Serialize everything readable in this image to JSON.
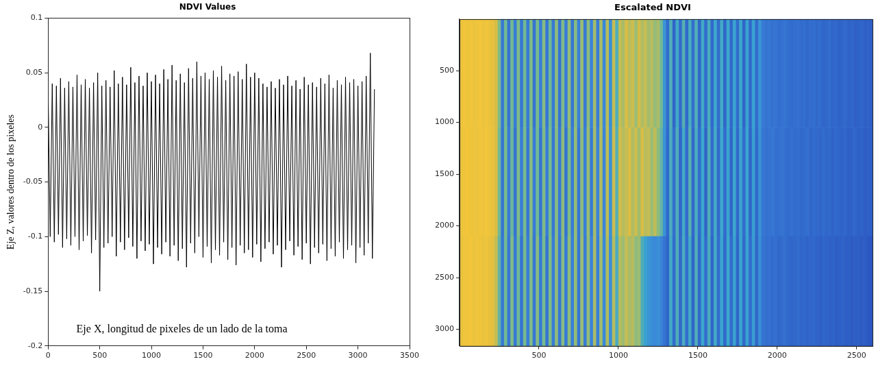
{
  "chart_data": [
    {
      "type": "line",
      "title": "NDVI Values",
      "y_label": "Eje Z, valores dentro de los pixeles",
      "annotations": [
        "Eje X, longitud de pixeles de un lado de la toma"
      ],
      "color": "#000000",
      "marker": "none",
      "line_style": "solid",
      "grid": false,
      "xlim": [
        0,
        3500
      ],
      "xticks": [
        0,
        500,
        1000,
        1500,
        2000,
        2500,
        3000,
        3500
      ],
      "ylim": [
        -0.2,
        0.1
      ],
      "yticks": [
        -0.2,
        -0.15,
        -0.1,
        -0.05,
        0,
        0.05,
        0.1
      ],
      "x": [
        0,
        20,
        40,
        60,
        80,
        100,
        120,
        140,
        160,
        180,
        200,
        220,
        240,
        260,
        280,
        300,
        320,
        340,
        360,
        380,
        400,
        420,
        440,
        460,
        480,
        500,
        520,
        540,
        560,
        580,
        600,
        620,
        640,
        660,
        680,
        700,
        720,
        740,
        760,
        780,
        800,
        820,
        840,
        860,
        880,
        900,
        920,
        940,
        960,
        980,
        1000,
        1020,
        1040,
        1060,
        1080,
        1100,
        1120,
        1140,
        1160,
        1180,
        1200,
        1220,
        1240,
        1260,
        1280,
        1300,
        1320,
        1340,
        1360,
        1380,
        1400,
        1420,
        1440,
        1460,
        1480,
        1500,
        1520,
        1540,
        1560,
        1580,
        1600,
        1620,
        1640,
        1660,
        1680,
        1700,
        1720,
        1740,
        1760,
        1780,
        1800,
        1820,
        1840,
        1860,
        1880,
        1900,
        1920,
        1940,
        1960,
        1980,
        2000,
        2020,
        2040,
        2060,
        2080,
        2100,
        2120,
        2140,
        2160,
        2180,
        2200,
        2220,
        2240,
        2260,
        2280,
        2300,
        2320,
        2340,
        2360,
        2380,
        2400,
        2420,
        2440,
        2460,
        2480,
        2500,
        2520,
        2540,
        2560,
        2580,
        2600,
        2620,
        2640,
        2660,
        2680,
        2700,
        2720,
        2740,
        2760,
        2780,
        2800,
        2820,
        2840,
        2860,
        2880,
        2900,
        2920,
        2940,
        2960,
        2980,
        3000,
        3020,
        3040,
        3060,
        3080,
        3100,
        3120,
        3140,
        3160
      ],
      "values": [
        0.035,
        -0.1,
        0.04,
        -0.105,
        0.038,
        -0.098,
        0.045,
        -0.11,
        0.036,
        -0.102,
        0.042,
        -0.108,
        0.037,
        -0.1,
        0.048,
        -0.112,
        0.039,
        -0.104,
        0.044,
        -0.099,
        0.036,
        -0.115,
        0.041,
        -0.103,
        0.05,
        -0.15,
        0.038,
        -0.11,
        0.043,
        -0.106,
        0.037,
        -0.1,
        0.052,
        -0.118,
        0.04,
        -0.105,
        0.046,
        -0.112,
        0.039,
        -0.101,
        0.055,
        -0.109,
        0.041,
        -0.12,
        0.047,
        -0.104,
        0.038,
        -0.113,
        0.05,
        -0.107,
        0.042,
        -0.125,
        0.048,
        -0.11,
        0.04,
        -0.116,
        0.053,
        -0.105,
        0.044,
        -0.118,
        0.057,
        -0.108,
        0.043,
        -0.122,
        0.049,
        -0.111,
        0.041,
        -0.128,
        0.054,
        -0.106,
        0.045,
        -0.115,
        0.06,
        -0.1,
        0.047,
        -0.119,
        0.05,
        -0.109,
        0.044,
        -0.124,
        0.052,
        -0.112,
        0.046,
        -0.117,
        0.056,
        -0.105,
        0.043,
        -0.121,
        0.049,
        -0.11,
        0.047,
        -0.126,
        0.051,
        -0.108,
        0.044,
        -0.115,
        0.058,
        -0.112,
        0.046,
        -0.119,
        0.05,
        -0.107,
        0.045,
        -0.123,
        0.04,
        -0.111,
        0.037,
        -0.105,
        0.042,
        -0.116,
        0.036,
        -0.108,
        0.044,
        -0.128,
        0.039,
        -0.112,
        0.047,
        -0.104,
        0.038,
        -0.117,
        0.043,
        -0.109,
        0.035,
        -0.121,
        0.046,
        -0.106,
        0.039,
        -0.125,
        0.041,
        -0.11,
        0.037,
        -0.115,
        0.045,
        -0.107,
        0.04,
        -0.122,
        0.048,
        -0.111,
        0.036,
        -0.118,
        0.043,
        -0.105,
        0.039,
        -0.12,
        0.046,
        -0.112,
        0.041,
        -0.108,
        0.044,
        -0.124,
        0.038,
        -0.11,
        0.042,
        -0.117,
        0.047,
        -0.106,
        0.068,
        -0.12,
        0.035
      ]
    },
    {
      "type": "heatmap",
      "title": "Escalated NDVI",
      "grid": false,
      "xlim": [
        0,
        2600
      ],
      "xticks": [
        500,
        1000,
        1500,
        2000,
        2500
      ],
      "ylim": [
        0,
        3160
      ],
      "yticks": [
        500,
        1000,
        1500,
        2000,
        2500,
        3000
      ],
      "x_edges": [
        0,
        20,
        40,
        60,
        80,
        100,
        120,
        140,
        160,
        180,
        200,
        220,
        240,
        260,
        280,
        300,
        320,
        340,
        360,
        380,
        400,
        420,
        440,
        460,
        480,
        500,
        520,
        540,
        560,
        580,
        600,
        620,
        640,
        660,
        680,
        700,
        720,
        740,
        760,
        780,
        800,
        820,
        840,
        860,
        880,
        900,
        920,
        940,
        960,
        980,
        1000,
        1020,
        1040,
        1060,
        1080,
        1100,
        1120,
        1140,
        1160,
        1180,
        1200,
        1220,
        1240,
        1260,
        1280,
        1300,
        1320,
        1340,
        1360,
        1380,
        1400,
        1420,
        1440,
        1460,
        1480,
        1500,
        1520,
        1540,
        1560,
        1580,
        1600,
        1620,
        1640,
        1660,
        1680,
        1700,
        1720,
        1740,
        1760,
        1780,
        1800,
        1820,
        1840,
        1860,
        1880,
        1900,
        1920,
        1940,
        1960,
        1980,
        2000,
        2020,
        2040,
        2060,
        2080,
        2100,
        2120,
        2140,
        2160,
        2180,
        2200,
        2220,
        2240,
        2260,
        2280,
        2300,
        2320,
        2340,
        2360,
        2380,
        2400,
        2420,
        2440,
        2460,
        2480,
        2500,
        2520,
        2540,
        2560,
        2580,
        2600
      ],
      "y_edges": [
        0,
        1050,
        2100,
        3160
      ],
      "cells": [
        [
          0.85,
          0.88,
          0.86,
          0.87,
          0.85,
          0.86,
          0.88,
          0.85,
          0.87,
          0.84,
          0.82,
          0.75,
          0.62,
          0.35,
          0.6,
          0.33,
          0.6,
          0.36,
          0.62,
          0.34,
          0.6,
          0.35,
          0.62,
          0.33,
          0.61,
          0.36,
          0.63,
          0.34,
          0.6,
          0.35,
          0.64,
          0.33,
          0.62,
          0.36,
          0.65,
          0.34,
          0.63,
          0.37,
          0.66,
          0.35,
          0.64,
          0.38,
          0.67,
          0.36,
          0.68,
          0.4,
          0.7,
          0.42,
          0.72,
          0.55,
          0.72,
          0.68,
          0.75,
          0.7,
          0.73,
          0.66,
          0.74,
          0.69,
          0.72,
          0.67,
          0.7,
          0.65,
          0.68,
          0.6,
          0.45,
          0.3,
          0.55,
          0.28,
          0.53,
          0.3,
          0.56,
          0.29,
          0.54,
          0.31,
          0.55,
          0.28,
          0.53,
          0.3,
          0.54,
          0.29,
          0.52,
          0.3,
          0.53,
          0.28,
          0.52,
          0.29,
          0.51,
          0.3,
          0.52,
          0.28,
          0.5,
          0.29,
          0.5,
          0.3,
          0.45,
          0.35,
          0.33,
          0.34,
          0.32,
          0.33,
          0.31,
          0.32,
          0.33,
          0.31,
          0.3,
          0.31,
          0.32,
          0.3,
          0.31,
          0.29,
          0.3,
          0.31,
          0.29,
          0.3,
          0.28,
          0.29,
          0.3,
          0.28,
          0.29,
          0.27,
          0.28,
          0.29,
          0.27,
          0.28,
          0.26,
          0.27,
          0.28,
          0.26,
          0.27,
          0.25
        ],
        [
          0.84,
          0.87,
          0.88,
          0.86,
          0.86,
          0.85,
          0.87,
          0.86,
          0.88,
          0.85,
          0.83,
          0.76,
          0.6,
          0.34,
          0.61,
          0.35,
          0.59,
          0.33,
          0.62,
          0.36,
          0.61,
          0.34,
          0.63,
          0.35,
          0.6,
          0.33,
          0.62,
          0.36,
          0.61,
          0.34,
          0.63,
          0.35,
          0.64,
          0.33,
          0.62,
          0.36,
          0.65,
          0.34,
          0.64,
          0.37,
          0.66,
          0.35,
          0.67,
          0.38,
          0.69,
          0.39,
          0.71,
          0.43,
          0.73,
          0.56,
          0.74,
          0.7,
          0.72,
          0.76,
          0.69,
          0.73,
          0.67,
          0.75,
          0.7,
          0.72,
          0.66,
          0.71,
          0.64,
          0.58,
          0.44,
          0.29,
          0.54,
          0.31,
          0.55,
          0.28,
          0.53,
          0.3,
          0.56,
          0.29,
          0.54,
          0.3,
          0.52,
          0.28,
          0.55,
          0.3,
          0.53,
          0.29,
          0.52,
          0.3,
          0.51,
          0.28,
          0.52,
          0.29,
          0.5,
          0.3,
          0.51,
          0.28,
          0.49,
          0.29,
          0.44,
          0.34,
          0.32,
          0.33,
          0.34,
          0.31,
          0.32,
          0.33,
          0.31,
          0.3,
          0.32,
          0.3,
          0.31,
          0.29,
          0.3,
          0.31,
          0.28,
          0.3,
          0.29,
          0.28,
          0.3,
          0.28,
          0.29,
          0.27,
          0.29,
          0.28,
          0.27,
          0.28,
          0.26,
          0.27,
          0.28,
          0.26,
          0.27,
          0.25,
          0.26,
          0.25
        ],
        [
          0.83,
          0.86,
          0.87,
          0.88,
          0.85,
          0.87,
          0.86,
          0.84,
          0.86,
          0.83,
          0.8,
          0.72,
          0.58,
          0.35,
          0.6,
          0.34,
          0.62,
          0.35,
          0.6,
          0.33,
          0.61,
          0.36,
          0.62,
          0.34,
          0.63,
          0.35,
          0.61,
          0.33,
          0.62,
          0.36,
          0.64,
          0.34,
          0.63,
          0.35,
          0.64,
          0.37,
          0.65,
          0.34,
          0.66,
          0.36,
          0.65,
          0.38,
          0.68,
          0.37,
          0.67,
          0.41,
          0.69,
          0.42,
          0.7,
          0.54,
          0.7,
          0.66,
          0.72,
          0.68,
          0.7,
          0.64,
          0.66,
          0.55,
          0.5,
          0.45,
          0.42,
          0.4,
          0.43,
          0.38,
          0.33,
          0.28,
          0.53,
          0.3,
          0.55,
          0.29,
          0.54,
          0.31,
          0.53,
          0.28,
          0.55,
          0.29,
          0.52,
          0.3,
          0.54,
          0.28,
          0.53,
          0.3,
          0.51,
          0.29,
          0.52,
          0.3,
          0.5,
          0.28,
          0.51,
          0.29,
          0.5,
          0.3,
          0.48,
          0.28,
          0.43,
          0.33,
          0.31,
          0.32,
          0.3,
          0.31,
          0.29,
          0.3,
          0.31,
          0.29,
          0.28,
          0.29,
          0.3,
          0.28,
          0.29,
          0.27,
          0.28,
          0.29,
          0.27,
          0.26,
          0.28,
          0.27,
          0.26,
          0.27,
          0.25,
          0.26,
          0.27,
          0.25,
          0.26,
          0.24,
          0.25,
          0.26,
          0.24,
          0.25,
          0.23,
          0.22
        ]
      ]
    }
  ]
}
